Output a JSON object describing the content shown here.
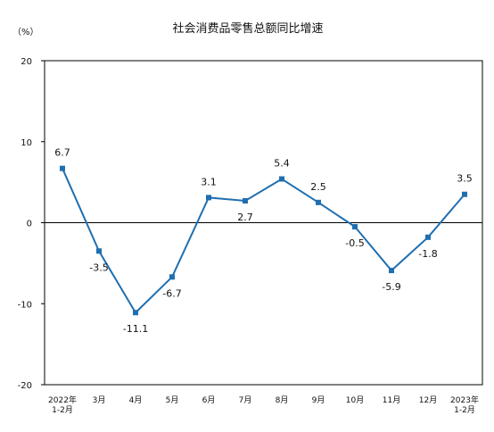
{
  "chart_data": {
    "type": "line",
    "title": "社会消费品零售总额同比增速",
    "unit_label": "（%）",
    "ylim": [
      -20,
      20
    ],
    "yticks": [
      20,
      10,
      0,
      -10,
      -20
    ],
    "grid": false,
    "categories": [
      [
        "2022年",
        "1-2月"
      ],
      [
        "3月"
      ],
      [
        "4月"
      ],
      [
        "5月"
      ],
      [
        "6月"
      ],
      [
        "7月"
      ],
      [
        "8月"
      ],
      [
        "9月"
      ],
      [
        "10月"
      ],
      [
        "11月"
      ],
      [
        "12月"
      ],
      [
        "2023年",
        "1-2月"
      ]
    ],
    "series": [
      {
        "values": [
          6.7,
          -3.5,
          -11.1,
          -6.7,
          3.1,
          2.7,
          5.4,
          2.5,
          -0.5,
          -5.9,
          -1.8,
          3.5
        ],
        "labels": [
          "6.7",
          "-3.5",
          "-11.1",
          "-6.7",
          "3.1",
          "2.7",
          "5.4",
          "2.5",
          "-0.5",
          "-5.9",
          "-1.8",
          "3.5"
        ],
        "color": "#1f6fb0"
      }
    ]
  }
}
